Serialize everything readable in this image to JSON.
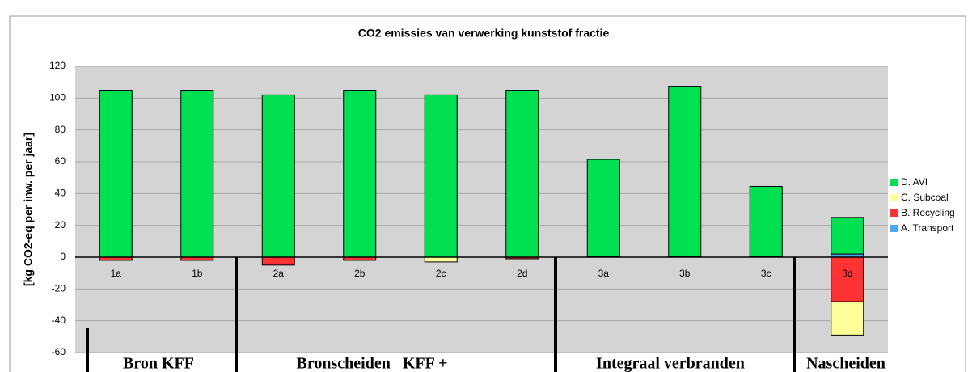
{
  "chart_data": {
    "type": "bar",
    "stacked": true,
    "title": "CO2 emissies van verwerking kunststof fractie",
    "y_label": "[kg CO2-eq per inw. per jaar]",
    "categories": [
      "1a",
      "1b",
      "2a",
      "2b",
      "2c",
      "2d",
      "3a",
      "3b",
      "3c",
      "3d"
    ],
    "series": [
      {
        "name": "A. Transport",
        "color": "#4aa8f0",
        "values": [
          0,
          0,
          0,
          0,
          0,
          0,
          0.5,
          0.5,
          0.5,
          2
        ]
      },
      {
        "name": "B. Recycling",
        "color": "#ff3333",
        "values": [
          -2,
          -2,
          -5,
          -2,
          0,
          -1,
          0,
          0,
          0,
          -28
        ]
      },
      {
        "name": "C. Subcoal",
        "color": "#ffff99",
        "values": [
          0,
          0,
          0,
          0,
          -3,
          0,
          0,
          0,
          0,
          -21
        ]
      },
      {
        "name": "D. AVI",
        "color": "#00e050",
        "values": [
          105,
          105,
          102,
          105,
          102,
          105,
          61,
          107,
          44,
          23
        ]
      }
    ],
    "ylim": [
      -60,
      120
    ],
    "yticks": [
      -60,
      -40,
      -20,
      0,
      20,
      40,
      60,
      80,
      100,
      120
    ],
    "grid": true,
    "groups": [
      "Bron KFF",
      "Bronscheiden   KFF +",
      "Integraal verbranden",
      "Nascheiden"
    ]
  }
}
